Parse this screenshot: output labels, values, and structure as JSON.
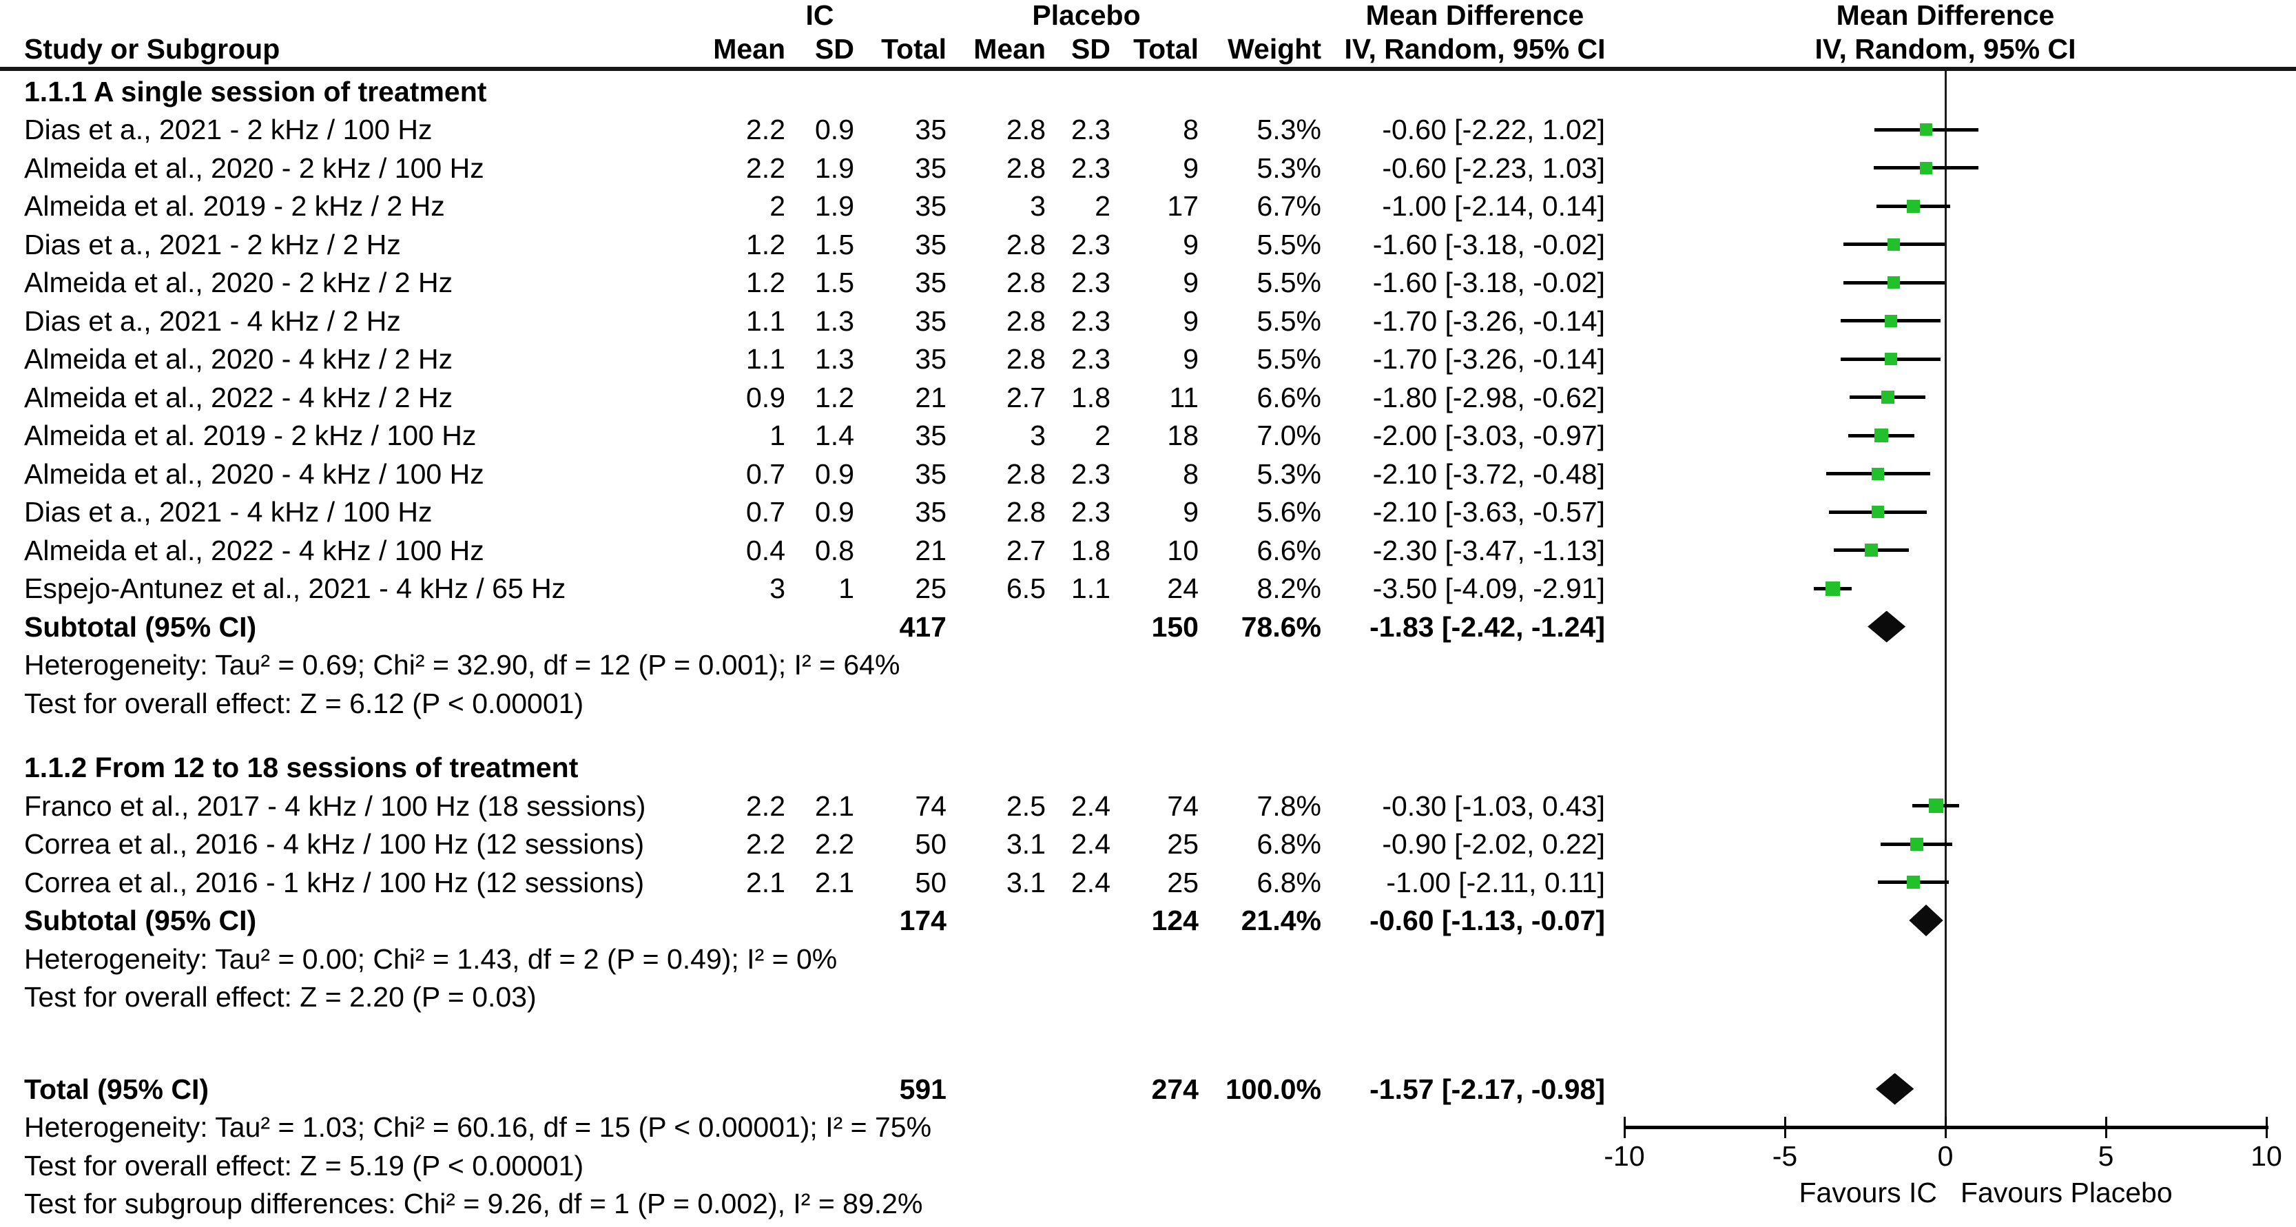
{
  "chart_data": {
    "type": "forest",
    "effect_measure": "Mean Difference",
    "method": "IV, Random, 95% CI",
    "group_labels": {
      "experimental": "IC",
      "control": "Placebo"
    },
    "columns": {
      "study": "Study or Subgroup",
      "mean": "Mean",
      "sd": "SD",
      "total": "Total",
      "weight": "Weight"
    },
    "axis": {
      "min": -10,
      "max": 10,
      "ticks": [
        "-10",
        "-5",
        "0",
        "5",
        "10"
      ],
      "favours_left": "Favours IC",
      "favours_right": "Favours Placebo"
    },
    "marker_color": "#22c02a",
    "subgroups": [
      {
        "label": "1.1.1 A single session of treatment",
        "studies": [
          {
            "name": "Dias et a., 2021 - 2 kHz / 100 Hz",
            "mean_ic": "2.2",
            "sd_ic": "0.9",
            "total_ic": "35",
            "mean_placebo": "2.8",
            "sd_placebo": "2.3",
            "total_placebo": "8",
            "weight": "5.3%",
            "weight_value": 5.3,
            "ci_text": "-0.60 [-2.22, 1.02]",
            "md": -0.6,
            "lo": -2.22,
            "hi": 1.02
          },
          {
            "name": "Almeida et al., 2020 - 2 kHz / 100 Hz",
            "mean_ic": "2.2",
            "sd_ic": "1.9",
            "total_ic": "35",
            "mean_placebo": "2.8",
            "sd_placebo": "2.3",
            "total_placebo": "9",
            "weight": "5.3%",
            "weight_value": 5.3,
            "ci_text": "-0.60 [-2.23, 1.03]",
            "md": -0.6,
            "lo": -2.23,
            "hi": 1.03
          },
          {
            "name": "Almeida et al. 2019 - 2 kHz / 2 Hz",
            "mean_ic": "2",
            "sd_ic": "1.9",
            "total_ic": "35",
            "mean_placebo": "3",
            "sd_placebo": "2",
            "total_placebo": "17",
            "weight": "6.7%",
            "weight_value": 6.7,
            "ci_text": "-1.00 [-2.14, 0.14]",
            "md": -1.0,
            "lo": -2.14,
            "hi": 0.14
          },
          {
            "name": "Dias et a., 2021 - 2 kHz / 2 Hz",
            "mean_ic": "1.2",
            "sd_ic": "1.5",
            "total_ic": "35",
            "mean_placebo": "2.8",
            "sd_placebo": "2.3",
            "total_placebo": "9",
            "weight": "5.5%",
            "weight_value": 5.5,
            "ci_text": "-1.60 [-3.18, -0.02]",
            "md": -1.6,
            "lo": -3.18,
            "hi": -0.02
          },
          {
            "name": "Almeida et al., 2020 - 2 kHz / 2 Hz",
            "mean_ic": "1.2",
            "sd_ic": "1.5",
            "total_ic": "35",
            "mean_placebo": "2.8",
            "sd_placebo": "2.3",
            "total_placebo": "9",
            "weight": "5.5%",
            "weight_value": 5.5,
            "ci_text": "-1.60 [-3.18, -0.02]",
            "md": -1.6,
            "lo": -3.18,
            "hi": -0.02
          },
          {
            "name": "Dias et a., 2021 - 4 kHz / 2 Hz",
            "mean_ic": "1.1",
            "sd_ic": "1.3",
            "total_ic": "35",
            "mean_placebo": "2.8",
            "sd_placebo": "2.3",
            "total_placebo": "9",
            "weight": "5.5%",
            "weight_value": 5.5,
            "ci_text": "-1.70 [-3.26, -0.14]",
            "md": -1.7,
            "lo": -3.26,
            "hi": -0.14
          },
          {
            "name": "Almeida et al., 2020 - 4 kHz / 2 Hz",
            "mean_ic": "1.1",
            "sd_ic": "1.3",
            "total_ic": "35",
            "mean_placebo": "2.8",
            "sd_placebo": "2.3",
            "total_placebo": "9",
            "weight": "5.5%",
            "weight_value": 5.5,
            "ci_text": "-1.70 [-3.26, -0.14]",
            "md": -1.7,
            "lo": -3.26,
            "hi": -0.14
          },
          {
            "name": "Almeida et al., 2022 - 4 kHz / 2 Hz",
            "mean_ic": "0.9",
            "sd_ic": "1.2",
            "total_ic": "21",
            "mean_placebo": "2.7",
            "sd_placebo": "1.8",
            "total_placebo": "11",
            "weight": "6.6%",
            "weight_value": 6.6,
            "ci_text": "-1.80 [-2.98, -0.62]",
            "md": -1.8,
            "lo": -2.98,
            "hi": -0.62
          },
          {
            "name": "Almeida et al. 2019 - 2 kHz / 100 Hz",
            "mean_ic": "1",
            "sd_ic": "1.4",
            "total_ic": "35",
            "mean_placebo": "3",
            "sd_placebo": "2",
            "total_placebo": "18",
            "weight": "7.0%",
            "weight_value": 7.0,
            "ci_text": "-2.00 [-3.03, -0.97]",
            "md": -2.0,
            "lo": -3.03,
            "hi": -0.97
          },
          {
            "name": "Almeida et al., 2020 - 4 kHz / 100 Hz",
            "mean_ic": "0.7",
            "sd_ic": "0.9",
            "total_ic": "35",
            "mean_placebo": "2.8",
            "sd_placebo": "2.3",
            "total_placebo": "8",
            "weight": "5.3%",
            "weight_value": 5.3,
            "ci_text": "-2.10 [-3.72, -0.48]",
            "md": -2.1,
            "lo": -3.72,
            "hi": -0.48
          },
          {
            "name": "Dias et a., 2021 - 4 kHz / 100 Hz",
            "mean_ic": "0.7",
            "sd_ic": "0.9",
            "total_ic": "35",
            "mean_placebo": "2.8",
            "sd_placebo": "2.3",
            "total_placebo": "9",
            "weight": "5.6%",
            "weight_value": 5.6,
            "ci_text": "-2.10 [-3.63, -0.57]",
            "md": -2.1,
            "lo": -3.63,
            "hi": -0.57
          },
          {
            "name": "Almeida et al., 2022 - 4 kHz / 100 Hz",
            "mean_ic": "0.4",
            "sd_ic": "0.8",
            "total_ic": "21",
            "mean_placebo": "2.7",
            "sd_placebo": "1.8",
            "total_placebo": "10",
            "weight": "6.6%",
            "weight_value": 6.6,
            "ci_text": "-2.30 [-3.47, -1.13]",
            "md": -2.3,
            "lo": -3.47,
            "hi": -1.13
          },
          {
            "name": "Espejo-Antunez et al., 2021 - 4 kHz / 65 Hz",
            "mean_ic": "3",
            "sd_ic": "1",
            "total_ic": "25",
            "mean_placebo": "6.5",
            "sd_placebo": "1.1",
            "total_placebo": "24",
            "weight": "8.2%",
            "weight_value": 8.2,
            "ci_text": "-3.50 [-4.09, -2.91]",
            "md": -3.5,
            "lo": -4.09,
            "hi": -2.91
          }
        ],
        "subtotal": {
          "label": "Subtotal (95% CI)",
          "total_ic": "417",
          "total_placebo": "150",
          "weight": "78.6%",
          "ci_text": "-1.83 [-2.42, -1.24]",
          "md": -1.83,
          "lo": -2.42,
          "hi": -1.24
        },
        "heterogeneity": "Heterogeneity: Tau² = 0.69; Chi² = 32.90, df = 12 (P = 0.001); I² = 64%",
        "overall_effect": "Test for overall effect: Z = 6.12 (P < 0.00001)"
      },
      {
        "label": "1.1.2 From 12 to 18 sessions of treatment",
        "studies": [
          {
            "name": "Franco et al., 2017 - 4 kHz / 100 Hz (18 sessions)",
            "mean_ic": "2.2",
            "sd_ic": "2.1",
            "total_ic": "74",
            "mean_placebo": "2.5",
            "sd_placebo": "2.4",
            "total_placebo": "74",
            "weight": "7.8%",
            "weight_value": 7.8,
            "ci_text": "-0.30 [-1.03, 0.43]",
            "md": -0.3,
            "lo": -1.03,
            "hi": 0.43
          },
          {
            "name": "Correa et al., 2016 - 4 kHz / 100 Hz (12 sessions)",
            "mean_ic": "2.2",
            "sd_ic": "2.2",
            "total_ic": "50",
            "mean_placebo": "3.1",
            "sd_placebo": "2.4",
            "total_placebo": "25",
            "weight": "6.8%",
            "weight_value": 6.8,
            "ci_text": "-0.90 [-2.02, 0.22]",
            "md": -0.9,
            "lo": -2.02,
            "hi": 0.22
          },
          {
            "name": "Correa et al., 2016 - 1 kHz / 100 Hz (12 sessions)",
            "mean_ic": "2.1",
            "sd_ic": "2.1",
            "total_ic": "50",
            "mean_placebo": "3.1",
            "sd_placebo": "2.4",
            "total_placebo": "25",
            "weight": "6.8%",
            "weight_value": 6.8,
            "ci_text": "-1.00 [-2.11, 0.11]",
            "md": -1.0,
            "lo": -2.11,
            "hi": 0.11
          }
        ],
        "subtotal": {
          "label": "Subtotal (95% CI)",
          "total_ic": "174",
          "total_placebo": "124",
          "weight": "21.4%",
          "ci_text": "-0.60 [-1.13, -0.07]",
          "md": -0.6,
          "lo": -1.13,
          "hi": -0.07
        },
        "heterogeneity": "Heterogeneity: Tau² = 0.00; Chi² = 1.43, df = 2 (P = 0.49); I² = 0%",
        "overall_effect": "Test for overall effect: Z = 2.20 (P = 0.03)"
      }
    ],
    "total": {
      "label": "Total (95% CI)",
      "total_ic": "591",
      "total_placebo": "274",
      "weight": "100.0%",
      "ci_text": "-1.57 [-2.17, -0.98]",
      "md": -1.57,
      "lo": -2.17,
      "hi": -0.98,
      "heterogeneity": "Heterogeneity: Tau² = 1.03; Chi² = 60.16, df = 15 (P < 0.00001); I² = 75%",
      "overall_effect": "Test for overall effect: Z = 5.19 (P < 0.00001)",
      "subgroup_differences": "Test for subgroup differences: Chi² = 9.26, df = 1 (P = 0.002), I² = 89.2%"
    }
  }
}
